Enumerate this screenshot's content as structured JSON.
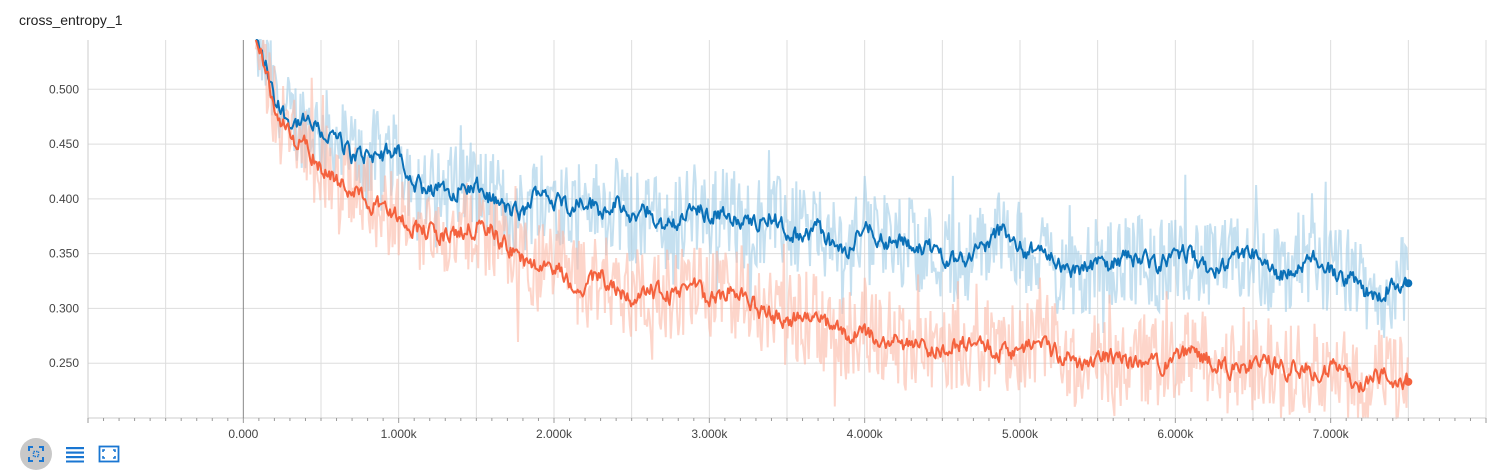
{
  "header": {
    "title": "cross_entropy_1"
  },
  "toolbar": {
    "items": [
      {
        "icon": "fit-to-data-icon",
        "active": true
      },
      {
        "icon": "list-icon",
        "active": false
      },
      {
        "icon": "fullscreen-icon",
        "active": false
      }
    ],
    "accent": "#1976d2"
  },
  "colors": {
    "series_blue": "#0b71b8",
    "series_blue_raw": "#9fcbe6",
    "series_orange": "#f4623e",
    "series_orange_raw": "#fbb9a6",
    "grid": "#dddddd",
    "zero_line": "#888888"
  },
  "chart_data": {
    "type": "line",
    "title": "cross_entropy_1",
    "xlabel": "",
    "ylabel": "",
    "xlim": [
      -1000,
      8000
    ],
    "ylim": [
      0.2,
      0.545
    ],
    "x_ticks": [
      0,
      1000,
      2000,
      3000,
      4000,
      5000,
      6000,
      7000
    ],
    "x_tick_labels": [
      "0.000",
      "1.000k",
      "2.000k",
      "3.000k",
      "4.000k",
      "5.000k",
      "6.000k",
      "7.000k"
    ],
    "y_ticks": [
      0.25,
      0.3,
      0.35,
      0.4,
      0.45,
      0.5
    ],
    "y_tick_labels": [
      "0.250",
      "0.300",
      "0.350",
      "0.400",
      "0.450",
      "0.500"
    ],
    "grid": true,
    "legend": "none",
    "series": [
      {
        "color": "#0b71b8",
        "x": [
          80,
          150,
          200,
          300,
          400,
          500,
          600,
          700,
          800,
          900,
          1000,
          1100,
          1200,
          1300,
          1400,
          1500,
          1600,
          1700,
          1800,
          1900,
          2000,
          2100,
          2200,
          2300,
          2400,
          2500,
          2600,
          2700,
          2800,
          2900,
          3000,
          3100,
          3200,
          3300,
          3400,
          3500,
          3600,
          3700,
          3800,
          3900,
          4000,
          4100,
          4200,
          4300,
          4400,
          4500,
          4600,
          4700,
          4800,
          4900,
          5000,
          5100,
          5200,
          5300,
          5400,
          5500,
          5600,
          5700,
          5800,
          5900,
          6000,
          6100,
          6200,
          6300,
          6400,
          6500,
          6600,
          6700,
          6800,
          6900,
          7000,
          7100,
          7200,
          7300,
          7400,
          7500
        ],
        "values": [
          0.545,
          0.52,
          0.49,
          0.47,
          0.47,
          0.46,
          0.455,
          0.44,
          0.44,
          0.44,
          0.445,
          0.415,
          0.405,
          0.41,
          0.41,
          0.41,
          0.4,
          0.39,
          0.385,
          0.41,
          0.4,
          0.395,
          0.4,
          0.39,
          0.395,
          0.38,
          0.39,
          0.375,
          0.38,
          0.39,
          0.385,
          0.39,
          0.375,
          0.38,
          0.385,
          0.37,
          0.365,
          0.375,
          0.355,
          0.35,
          0.38,
          0.365,
          0.36,
          0.36,
          0.355,
          0.35,
          0.345,
          0.35,
          0.36,
          0.375,
          0.355,
          0.35,
          0.35,
          0.335,
          0.335,
          0.34,
          0.34,
          0.345,
          0.345,
          0.34,
          0.35,
          0.35,
          0.335,
          0.335,
          0.345,
          0.35,
          0.335,
          0.33,
          0.335,
          0.345,
          0.335,
          0.33,
          0.315,
          0.31,
          0.325,
          0.323
        ]
      },
      {
        "color": "#f4623e",
        "x": [
          80,
          150,
          200,
          300,
          400,
          500,
          600,
          700,
          800,
          900,
          1000,
          1100,
          1200,
          1300,
          1400,
          1500,
          1600,
          1700,
          1800,
          1900,
          2000,
          2100,
          2200,
          2300,
          2400,
          2500,
          2600,
          2700,
          2800,
          2900,
          3000,
          3100,
          3200,
          3300,
          3400,
          3500,
          3600,
          3700,
          3800,
          3900,
          4000,
          4100,
          4200,
          4300,
          4400,
          4500,
          4600,
          4700,
          4800,
          4900,
          5000,
          5100,
          5200,
          5300,
          5400,
          5500,
          5600,
          5700,
          5800,
          5900,
          6000,
          6100,
          6200,
          6300,
          6400,
          6500,
          6600,
          6700,
          6800,
          6900,
          7000,
          7100,
          7200,
          7300,
          7400,
          7500
        ],
        "values": [
          0.545,
          0.515,
          0.485,
          0.455,
          0.45,
          0.43,
          0.415,
          0.41,
          0.4,
          0.39,
          0.385,
          0.375,
          0.37,
          0.365,
          0.37,
          0.375,
          0.37,
          0.355,
          0.345,
          0.335,
          0.34,
          0.325,
          0.32,
          0.33,
          0.32,
          0.31,
          0.32,
          0.31,
          0.315,
          0.32,
          0.31,
          0.315,
          0.32,
          0.3,
          0.295,
          0.29,
          0.29,
          0.295,
          0.28,
          0.275,
          0.28,
          0.27,
          0.27,
          0.265,
          0.26,
          0.265,
          0.27,
          0.265,
          0.265,
          0.26,
          0.265,
          0.27,
          0.26,
          0.255,
          0.25,
          0.255,
          0.255,
          0.25,
          0.255,
          0.25,
          0.255,
          0.26,
          0.255,
          0.25,
          0.24,
          0.25,
          0.25,
          0.245,
          0.245,
          0.245,
          0.245,
          0.24,
          0.23,
          0.24,
          0.235,
          0.233
        ]
      }
    ]
  }
}
